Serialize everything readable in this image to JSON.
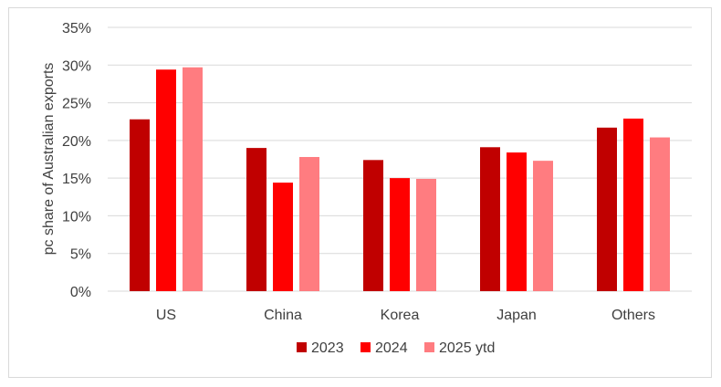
{
  "chart_data": {
    "type": "bar",
    "title": "",
    "xlabel": "",
    "ylabel": "pc share of Australian exports",
    "categories": [
      "US",
      "China",
      "Korea",
      "Japan",
      "Others"
    ],
    "series": [
      {
        "name": "2023",
        "color": "#c00000",
        "values": [
          22.8,
          19.0,
          17.4,
          19.1,
          21.7
        ]
      },
      {
        "name": "2024",
        "color": "#ff0000",
        "values": [
          29.4,
          14.4,
          15.0,
          18.4,
          22.9
        ]
      },
      {
        "name": "2025 ytd",
        "color": "#ff7c80",
        "values": [
          29.7,
          17.8,
          14.9,
          17.3,
          20.4
        ]
      }
    ],
    "ylim": [
      0,
      35
    ],
    "yticks": [
      0,
      5,
      10,
      15,
      20,
      25,
      30,
      35
    ],
    "ytick_labels": [
      "0%",
      "5%",
      "10%",
      "15%",
      "20%",
      "25%",
      "30%",
      "35%"
    ],
    "grid": "horizontal",
    "legend_position": "bottom"
  }
}
